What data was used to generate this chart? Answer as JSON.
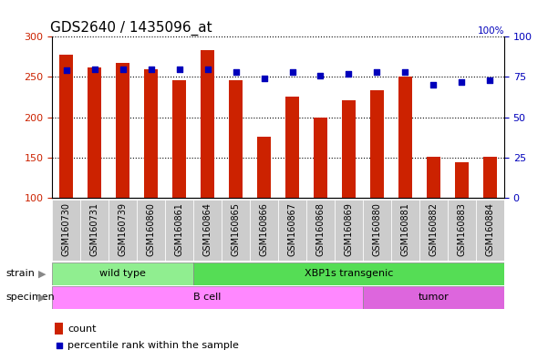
{
  "title": "GDS2640 / 1435096_at",
  "samples": [
    "GSM160730",
    "GSM160731",
    "GSM160739",
    "GSM160860",
    "GSM160861",
    "GSM160864",
    "GSM160865",
    "GSM160866",
    "GSM160867",
    "GSM160868",
    "GSM160869",
    "GSM160880",
    "GSM160881",
    "GSM160882",
    "GSM160883",
    "GSM160884"
  ],
  "counts": [
    278,
    262,
    267,
    260,
    246,
    283,
    246,
    176,
    226,
    200,
    221,
    233,
    250,
    151,
    144,
    151
  ],
  "percentiles": [
    79,
    80,
    80,
    80,
    80,
    80,
    78,
    74,
    78,
    76,
    77,
    78,
    78,
    70,
    72,
    73
  ],
  "ylim_left": [
    100,
    300
  ],
  "ylim_right": [
    0,
    100
  ],
  "yticks_left": [
    100,
    150,
    200,
    250,
    300
  ],
  "yticks_right": [
    0,
    25,
    50,
    75,
    100
  ],
  "strain_groups": [
    {
      "label": "wild type",
      "start": 0,
      "end": 5,
      "color": "#90EE90"
    },
    {
      "label": "XBP1s transgenic",
      "start": 5,
      "end": 16,
      "color": "#55DD55"
    }
  ],
  "specimen_groups": [
    {
      "label": "B cell",
      "start": 0,
      "end": 11,
      "color": "#FF88FF"
    },
    {
      "label": "tumor",
      "start": 11,
      "end": 16,
      "color": "#DD66DD"
    }
  ],
  "bar_color": "#CC2200",
  "dot_color": "#0000BB",
  "bar_width": 0.5,
  "grid_color": "black",
  "title_fontsize": 11,
  "tick_label_fontsize": 7,
  "axis_color_left": "#CC2200",
  "axis_color_right": "#0000BB",
  "xtick_bg": "#CCCCCC"
}
